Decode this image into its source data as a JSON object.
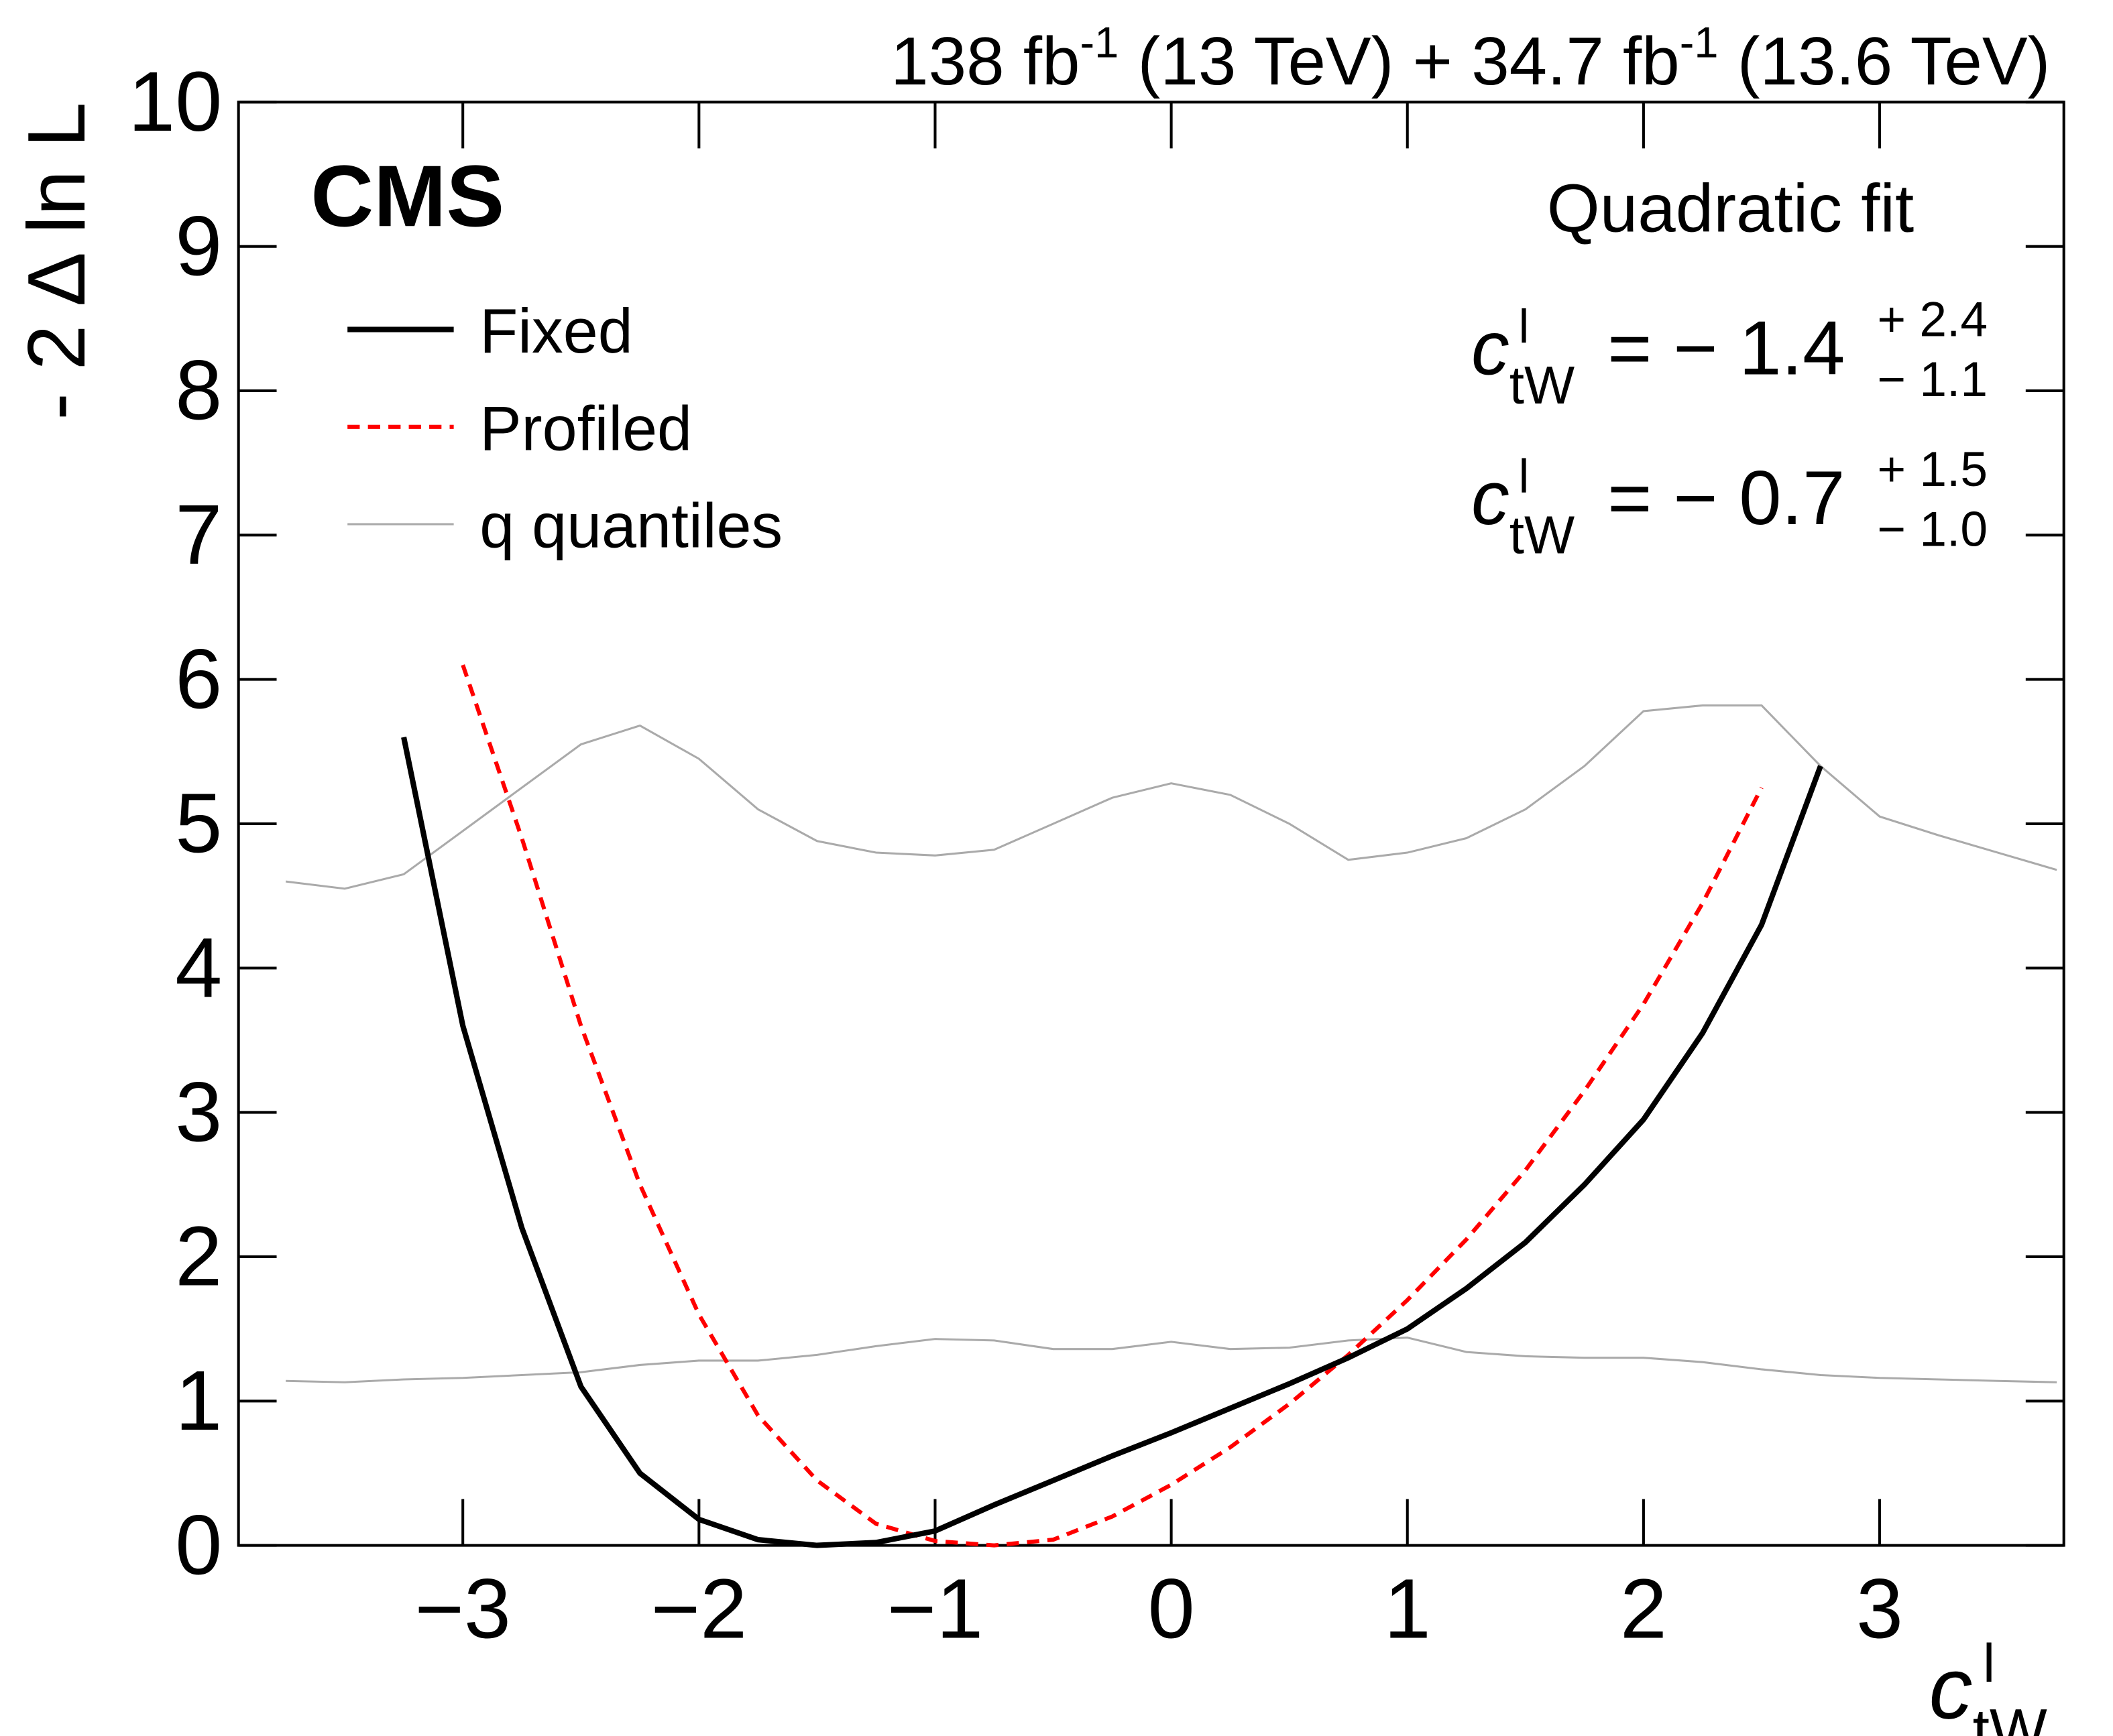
{
  "chart_data": {
    "type": "line",
    "lumi": [
      "138 fb",
      "-1",
      " (13 TeV) + 34.7 fb",
      "-1",
      " (13.6 TeV)"
    ],
    "experiment": "CMS",
    "fit_label": "Quadratic fit",
    "results": [
      {
        "symbol": "c",
        "sup": "l",
        "sub": "tW",
        "central": "= − 1.4",
        "up": "+ 2.4",
        "down": "− 1.1",
        "color": "#000000"
      },
      {
        "symbol": "c",
        "sup": "l",
        "sub": "tW",
        "central": "= − 0.7",
        "up": "+ 1.5",
        "down": "− 1.0",
        "color": "#ff0000"
      }
    ],
    "xlabel": {
      "symbol": "c",
      "sup": "l",
      "sub": "tW"
    },
    "ylabel": "- 2 Δ ln L",
    "x": [
      -3.75,
      -3.5,
      -3.25,
      -3.0,
      -2.75,
      -2.5,
      -2.25,
      -2.0,
      -1.75,
      -1.5,
      -1.25,
      -1.0,
      -0.75,
      -0.5,
      -0.25,
      0,
      0.25,
      0.5,
      0.75,
      1.0,
      1.25,
      1.5,
      1.75,
      2.0,
      2.25,
      2.5,
      2.75,
      3.0,
      3.25,
      3.5,
      3.75
    ],
    "series": [
      {
        "name": "Fixed",
        "color": "#000000",
        "dash": "solid",
        "width": 4,
        "values": [
          null,
          null,
          5.6,
          3.6,
          2.2,
          1.1,
          0.5,
          0.18,
          0.04,
          0.0,
          0.02,
          0.1,
          0.28,
          0.45,
          0.62,
          0.78,
          0.95,
          1.12,
          1.3,
          1.5,
          1.78,
          2.1,
          2.5,
          2.95,
          3.55,
          4.3,
          5.4,
          null,
          null,
          null,
          null
        ]
      },
      {
        "name": "Profiled",
        "color": "#ff0000",
        "dash": "dashed",
        "width": 3,
        "values": [
          null,
          null,
          null,
          6.1,
          4.9,
          3.6,
          2.5,
          1.6,
          0.9,
          0.45,
          0.15,
          0.03,
          0.0,
          0.04,
          0.2,
          0.42,
          0.68,
          0.98,
          1.32,
          1.7,
          2.12,
          2.6,
          3.15,
          3.75,
          4.45,
          5.25,
          null,
          null,
          null,
          null,
          null
        ]
      },
      {
        "name": "q quantiles",
        "color": "#aaaaaa",
        "dash": "solid",
        "width": 1.5,
        "values": [
          [
            4.6,
            4.55,
            4.65,
            4.95,
            5.25,
            5.55,
            5.68,
            5.45,
            5.1,
            4.88,
            4.8,
            4.78,
            4.82,
            5.0,
            5.18,
            5.28,
            5.2,
            5.0,
            4.75,
            4.8,
            4.9,
            5.1,
            5.4,
            5.78,
            5.82,
            5.82,
            5.4,
            5.05,
            4.92,
            4.8,
            4.68
          ],
          [
            1.14,
            1.13,
            1.15,
            1.16,
            1.18,
            1.2,
            1.25,
            1.28,
            1.28,
            1.32,
            1.38,
            1.43,
            1.42,
            1.36,
            1.36,
            1.41,
            1.36,
            1.37,
            1.42,
            1.44,
            1.34,
            1.31,
            1.3,
            1.3,
            1.27,
            1.22,
            1.18,
            1.16,
            1.15,
            1.14,
            1.13
          ]
        ]
      }
    ],
    "xlim": [
      -3.95,
      3.78
    ],
    "ylim": [
      0,
      10
    ],
    "xticks": [
      {
        "value": -3,
        "label": "−3"
      },
      {
        "value": -2,
        "label": "−2"
      },
      {
        "value": -1,
        "label": "−1"
      },
      0,
      1,
      2,
      3
    ],
    "yticks": [
      0,
      1,
      2,
      3,
      4,
      5,
      6,
      7,
      8,
      9,
      10
    ]
  }
}
